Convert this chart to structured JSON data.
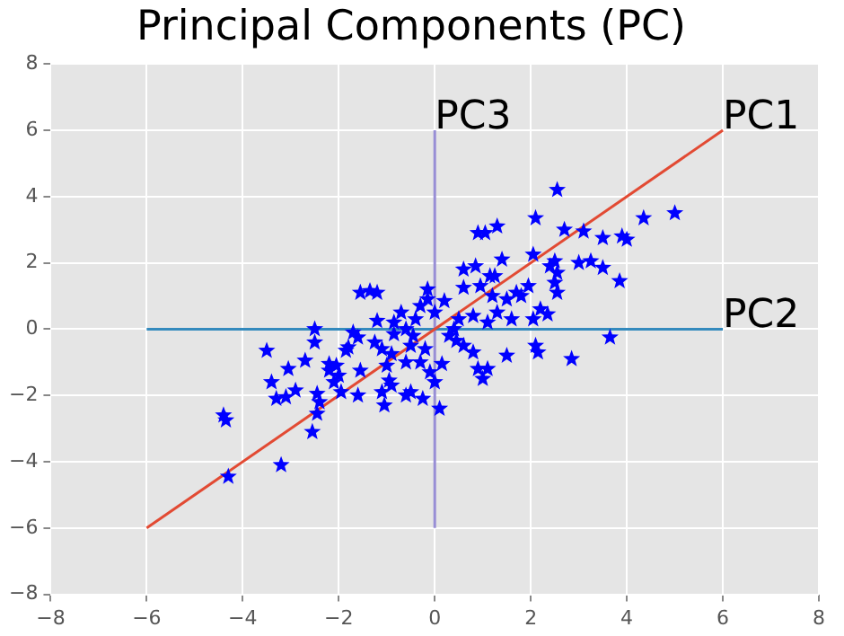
{
  "chart_data": {
    "type": "scatter",
    "title": "Principal Components (PC)",
    "xlim": [
      -8,
      8
    ],
    "ylim": [
      -8,
      8
    ],
    "xticks": [
      -8,
      -6,
      -4,
      -2,
      0,
      2,
      4,
      6,
      8
    ],
    "yticks": [
      -8,
      -6,
      -4,
      -2,
      0,
      2,
      4,
      6,
      8
    ],
    "grid": true,
    "legend": false,
    "series": [
      {
        "color": "#0000ff",
        "marker": "star",
        "x": [
          -4.4,
          -4.35,
          -4.3,
          -3.2,
          -3.5,
          -3.4,
          -3.3,
          -3.05,
          -3.1,
          -2.9,
          -2.7,
          -2.5,
          -2.5,
          -2.55,
          -2.45,
          -2.4,
          -2.45,
          -2.2,
          -2.2,
          -2.1,
          -2.05,
          -2.0,
          -1.95,
          -1.85,
          -1.8,
          -1.7,
          -1.6,
          -1.55,
          -1.55,
          -1.6,
          -1.35,
          -1.2,
          -1.25,
          -1.2,
          -1.1,
          -1.1,
          -1.05,
          -1.0,
          -0.95,
          -0.9,
          -0.9,
          -0.85,
          -0.85,
          -0.7,
          -0.6,
          -0.6,
          -0.5,
          -0.5,
          -0.45,
          -0.4,
          -0.3,
          -0.3,
          -0.25,
          -0.2,
          -0.15,
          -0.15,
          -0.1,
          0.0,
          0.0,
          0.1,
          0.15,
          0.2,
          0.3,
          0.45,
          0.5,
          0.6,
          0.6,
          0.6,
          0.8,
          0.85,
          0.9,
          0.9,
          1.0,
          1.05,
          1.1,
          1.15,
          1.1,
          1.3,
          1.2,
          1.3,
          1.4,
          1.5,
          1.5,
          1.6,
          1.8,
          1.95,
          2.05,
          2.05,
          2.1,
          2.1,
          2.15,
          2.2,
          2.35,
          2.4,
          2.5,
          2.5,
          2.55,
          2.55,
          2.55,
          2.7,
          2.85,
          3.0,
          3.1,
          3.25,
          3.5,
          3.5,
          3.65,
          3.85,
          3.9,
          4.0,
          4.35,
          5.0,
          0.4,
          -0.6,
          0.8,
          1.7,
          0.95,
          1.25
        ],
        "values": [
          -2.6,
          -2.75,
          -4.45,
          -4.1,
          -0.65,
          -1.6,
          -2.1,
          -1.2,
          -2.05,
          -1.85,
          -0.95,
          0.0,
          -0.4,
          -3.1,
          -2.55,
          -2.2,
          -1.95,
          -1.05,
          -1.25,
          -1.6,
          -1.1,
          -1.4,
          -1.9,
          -0.65,
          -0.55,
          -0.1,
          -0.25,
          1.1,
          -1.25,
          -2.0,
          1.15,
          1.1,
          -0.4,
          0.25,
          -0.6,
          -1.9,
          -2.3,
          -1.1,
          -1.55,
          -0.75,
          -1.7,
          0.2,
          -0.15,
          0.5,
          -1.0,
          -2.0,
          -1.9,
          -0.5,
          -0.2,
          0.3,
          0.7,
          -1.0,
          -2.1,
          -0.6,
          1.2,
          0.9,
          -1.3,
          -1.6,
          0.5,
          -2.4,
          -1.05,
          0.85,
          -0.2,
          -0.35,
          0.3,
          -0.5,
          1.25,
          1.8,
          -0.7,
          1.9,
          2.9,
          -1.2,
          -1.5,
          2.9,
          -1.2,
          1.6,
          0.2,
          3.1,
          1.0,
          0.5,
          2.1,
          0.9,
          -0.8,
          0.3,
          1.0,
          1.3,
          2.25,
          0.3,
          3.35,
          -0.5,
          -0.7,
          0.6,
          0.45,
          1.9,
          2.05,
          1.4,
          1.1,
          1.7,
          4.2,
          3.0,
          -0.9,
          2.0,
          2.95,
          2.05,
          2.75,
          1.85,
          -0.25,
          1.45,
          2.8,
          2.7,
          3.35,
          3.5,
          0.0,
          0.0,
          0.4,
          1.1,
          1.3,
          1.6
        ]
      },
      {
        "type": "line",
        "name": "PC1",
        "color": "#e24a33",
        "marker": "none",
        "line_style": "solid",
        "x": [
          -6,
          6
        ],
        "values": [
          -6,
          6
        ]
      },
      {
        "type": "line",
        "name": "PC2",
        "color": "#348abd",
        "marker": "none",
        "line_style": "solid",
        "x": [
          -6,
          6
        ],
        "values": [
          0,
          0
        ]
      },
      {
        "type": "line",
        "name": "PC3",
        "color": "#988ed5",
        "marker": "none",
        "line_style": "solid",
        "x": [
          0,
          0
        ],
        "values": [
          -6,
          6
        ]
      }
    ]
  }
}
